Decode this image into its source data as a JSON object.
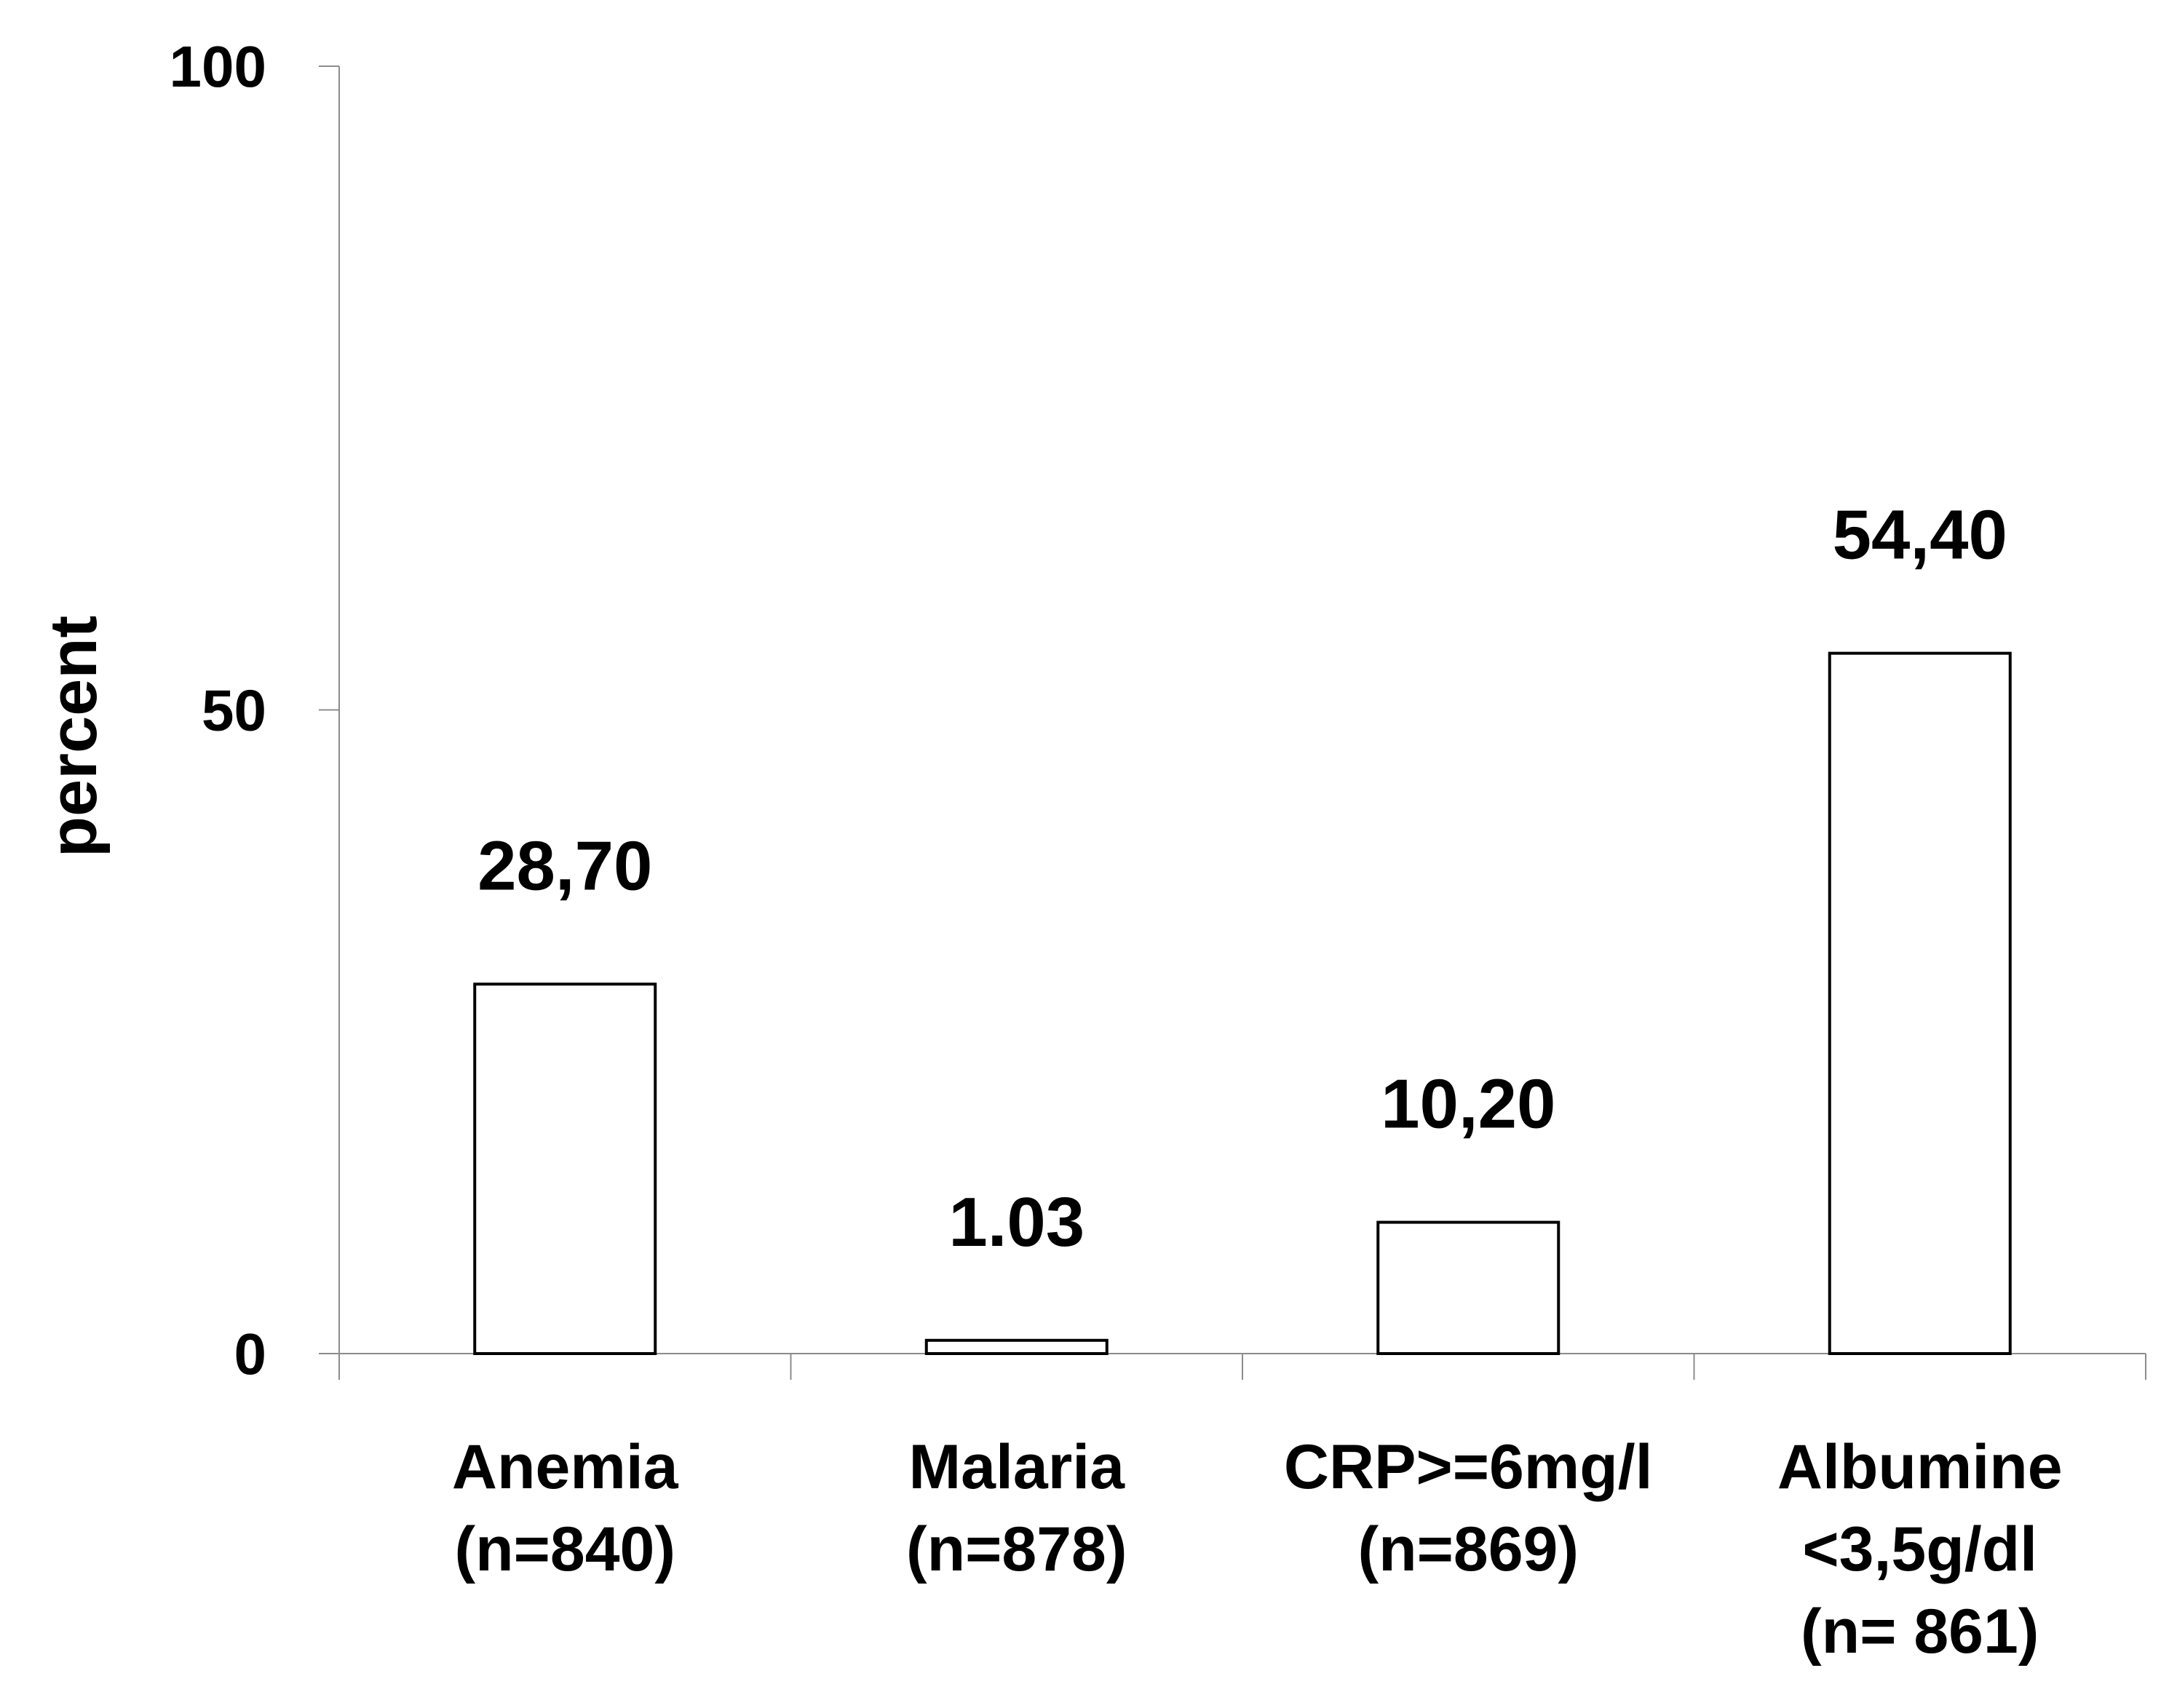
{
  "chart_data": {
    "type": "bar",
    "title": "",
    "xlabel": "",
    "ylabel": "percent",
    "ylim": [
      0,
      100
    ],
    "yticks": [
      "0",
      "50",
      "100"
    ],
    "grid": false,
    "legend": "none",
    "categories": [
      [
        "Anemia",
        "(n=840)"
      ],
      [
        "Malaria",
        "(n=878)"
      ],
      [
        "CRP>=6mg/l",
        "(n=869)"
      ],
      [
        "Albumine",
        "<3,5g/dl",
        "(n= 861)"
      ]
    ],
    "values": [
      28.7,
      1.03,
      10.2,
      54.4
    ],
    "data_labels": [
      "28,70",
      "1.03",
      "10,20",
      "54,40"
    ],
    "colors": {
      "bar_fill": "#ffffff",
      "bar_stroke": "#000000",
      "axis": "#8c8c8c"
    }
  }
}
